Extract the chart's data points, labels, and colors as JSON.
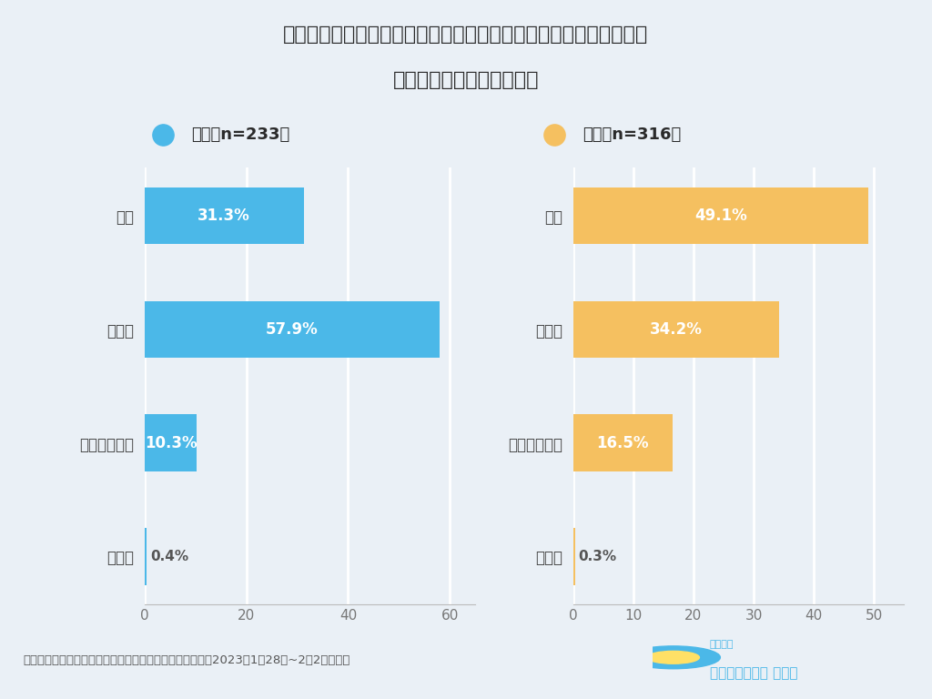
{
  "title_line1": "【質問】今年のバレンタインにプレゼントを購入する予定ですか？",
  "title_line2": "（自分への購入品も含む）",
  "male_label": "男性（n=233）",
  "female_label": "女性（n=316）",
  "categories": [
    "はい",
    "いいえ",
    "わかりません",
    "その他"
  ],
  "male_values": [
    31.3,
    57.9,
    10.3,
    0.4
  ],
  "female_values": [
    49.1,
    34.2,
    16.5,
    0.3
  ],
  "male_labels": [
    "31.3%",
    "57.9%",
    "10.3%",
    "0.4%"
  ],
  "female_labels": [
    "49.1%",
    "34.2%",
    "16.5%",
    "0.3%"
  ],
  "male_color": "#4BB8E8",
  "female_color": "#F5C060",
  "background_color": "#EAF0F6",
  "title_bg_color": "#FFFFFF",
  "male_xlim": [
    0,
    65
  ],
  "female_xlim": [
    0,
    55
  ],
  "male_xticks": [
    0,
    20,
    40,
    60
  ],
  "female_xticks": [
    0,
    10,
    20,
    30,
    40,
    50
  ],
  "footer_text": "バレンタインギフトの購買行動に関するアンケート調査（2023年1月28日~2月2日実施）",
  "logo_line1": "ナイルの",
  "logo_line2": "マーケティング 相談室",
  "bar_height": 0.5
}
